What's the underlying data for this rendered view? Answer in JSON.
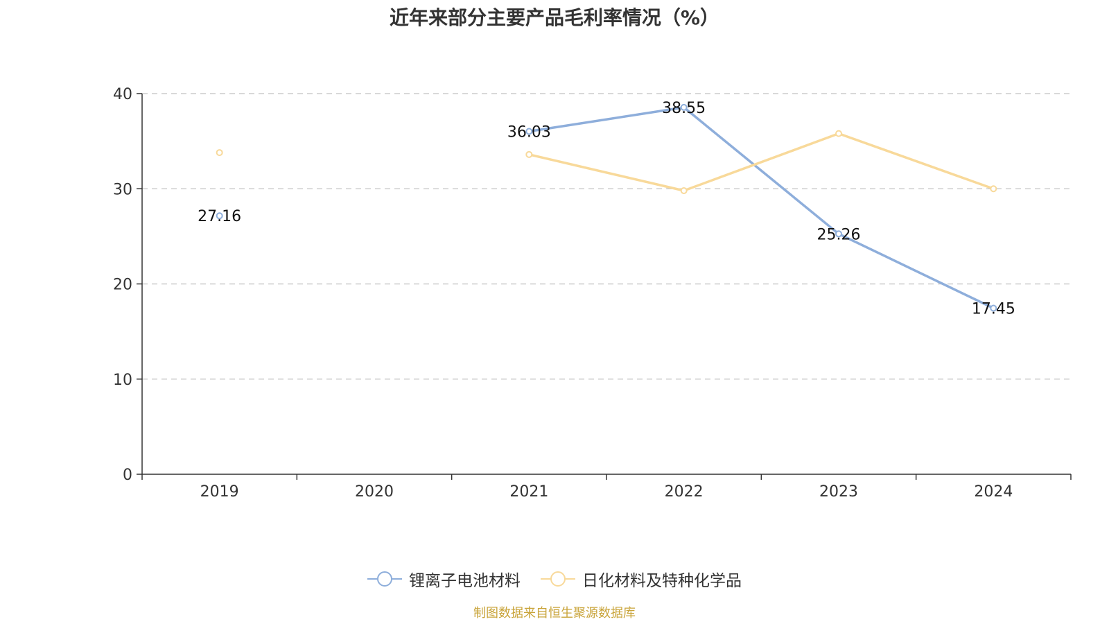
{
  "colors": {
    "series1": "#8eaedb",
    "series2": "#f8d99a",
    "grid": "#cccccc",
    "axis": "#333333",
    "source": "#c9a43a"
  },
  "chart_data": {
    "type": "line",
    "title": "近年来部分主要产品毛利率情况（%）",
    "categories": [
      "2019",
      "2020",
      "2021",
      "2022",
      "2023",
      "2024"
    ],
    "ylim": [
      0,
      40
    ],
    "yticks": [
      "0",
      "10",
      "20",
      "30",
      "40"
    ],
    "grid": true,
    "legend_position": "bottom",
    "series": [
      {
        "name": "锂离子电池材料",
        "color": "#8eaedb",
        "values": [
          27.16,
          null,
          36.03,
          38.55,
          25.26,
          17.45
        ],
        "labels": [
          "27.16",
          "",
          "36.03",
          "38.55",
          "25.26",
          "17.45"
        ]
      },
      {
        "name": "日化材料及特种化学品",
        "color": "#f8d99a",
        "values": [
          33.8,
          null,
          33.6,
          29.8,
          35.8,
          30.0
        ],
        "labels": [
          "",
          "",
          "",
          "",
          "",
          ""
        ]
      }
    ],
    "source": "制图数据来自恒生聚源数据库"
  }
}
